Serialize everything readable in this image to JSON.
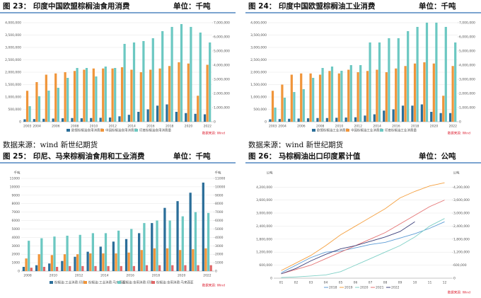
{
  "chart_data": [
    {
      "type": "bar",
      "title": "图 23： 印度中国欧盟棕榈油食用消费",
      "unit": "单位：千吨",
      "note": "数据来源：wind 新世纪期货",
      "source": "数据来源: Wind",
      "categories": [
        "2003",
        "2004",
        null,
        "2006",
        null,
        "2008",
        null,
        "2010",
        null,
        "2012",
        null,
        "2014",
        null,
        "2016",
        null,
        "2018",
        null,
        "2020",
        null,
        "2022"
      ],
      "ylim": [
        0,
        4000000
      ],
      "yticks": [
        0,
        {
          "value": 500000,
          "label": "500,000"
        },
        {
          "value": 1000000,
          "label": "1,000,000"
        },
        {
          "value": 1500000,
          "label": "1,500,000"
        },
        {
          "value": 2000000,
          "label": "2,000,000"
        },
        {
          "value": 2500000,
          "label": "2,500,000"
        },
        {
          "value": 3000000,
          "label": "3,000,000"
        },
        {
          "value": 3500000,
          "label": "3,500,000"
        },
        {
          "value": 4000000,
          "label": "4,000,000"
        }
      ],
      "y2lim": [
        0,
        7000000
      ],
      "y2ticks": [
        0,
        {
          "value": 1000000,
          "label": "1,000,000"
        },
        {
          "value": 2000000,
          "label": "2,000,000"
        },
        {
          "value": 3000000,
          "label": "3,000,000"
        },
        {
          "value": 4000000,
          "label": "4,000,000"
        },
        {
          "value": 5000000,
          "label": "5,000,000"
        },
        {
          "value": 6000000,
          "label": "6,000,000"
        },
        {
          "value": 7000000,
          "label": "7,000,000"
        }
      ],
      "grid": true,
      "series": [
        {
          "name": "欧盟棕榈油食用消费量",
          "color": "#2b6e99",
          "values": [
            100000,
            110000,
            120000,
            130000,
            140000,
            150000,
            140000,
            150000,
            160000,
            170000,
            220000,
            280000,
            400000,
            500000,
            650000,
            700000,
            400000,
            350000,
            320000,
            300000
          ]
        },
        {
          "name": "中国棕榈油食用消费量",
          "color": "#f0953a",
          "values": [
            1250000,
            1600000,
            1900000,
            1950000,
            2000000,
            2050000,
            2100000,
            2150000,
            2150000,
            2150000,
            2200000,
            2100000,
            2000000,
            2100000,
            2150000,
            2250000,
            2400000,
            2350000,
            1050000,
            2300000
          ]
        },
        {
          "name": "印度棕榈油食用消费量",
          "color": "#6cc8c2",
          "axis": "y2",
          "values": [
            1100000,
            1800000,
            2200000,
            2400000,
            3100000,
            3800000,
            3800000,
            3200000,
            3900000,
            3800000,
            5500000,
            5600000,
            5700000,
            5900000,
            6400000,
            6700000,
            6900000,
            6700000,
            6300000,
            5600000
          ]
        }
      ]
    },
    {
      "type": "bar",
      "title": "图 24： 印度中国欧盟棕榈油工业消费",
      "unit": "单位：千吨",
      "note": "数据来源：wind 新世纪期货",
      "source": "数据来源: Wind",
      "categories": [
        "2003",
        "2004",
        null,
        "2006",
        null,
        "2008",
        null,
        "2010",
        null,
        "2012",
        null,
        "2014",
        null,
        "2016",
        null,
        "2018",
        null,
        "2020",
        null,
        "2022"
      ],
      "ylim": [
        0,
        4000000
      ],
      "yticks": [
        0,
        {
          "value": 500000,
          "label": "500,000"
        },
        {
          "value": 1000000,
          "label": "1,000,000"
        },
        {
          "value": 1500000,
          "label": "1,500,000"
        },
        {
          "value": 2000000,
          "label": "2,000,000"
        },
        {
          "value": 2500000,
          "label": "2,500,000"
        },
        {
          "value": 3000000,
          "label": "3,000,000"
        },
        {
          "value": 3500000,
          "label": "3,500,000"
        },
        {
          "value": 4000000,
          "label": "4,000,000"
        }
      ],
      "y2lim": [
        0,
        7000000
      ],
      "y2ticks": [
        0,
        {
          "value": 1000000,
          "label": "1,000,000"
        },
        {
          "value": 2000000,
          "label": "2,000,000"
        },
        {
          "value": 3000000,
          "label": "3,000,000"
        },
        {
          "value": 4000000,
          "label": "4,000,000"
        },
        {
          "value": 5000000,
          "label": "5,000,000"
        },
        {
          "value": 6000000,
          "label": "6,000,000"
        },
        {
          "value": 7000000,
          "label": "7,000,000"
        }
      ],
      "grid": true,
      "series": [
        {
          "name": "欧盟棕榈油工业消费量",
          "color": "#2b6e99",
          "values": [
            100000,
            110000,
            120000,
            130000,
            140000,
            150000,
            150000,
            160000,
            170000,
            180000,
            250000,
            300000,
            450000,
            500000,
            650000,
            650000,
            700000,
            400000,
            350000,
            350000
          ]
        },
        {
          "name": "中国棕榈油工业消费量",
          "color": "#f0953a",
          "values": [
            1250000,
            1500000,
            1900000,
            1950000,
            1950000,
            1900000,
            2050000,
            1950000,
            2100000,
            2000000,
            2050000,
            2100000,
            2000000,
            2150000,
            2250000,
            2350000,
            2400000,
            2350000,
            1050000,
            2250000
          ]
        },
        {
          "name": "印度棕榈油工业消费量",
          "color": "#6cc8c2",
          "axis": "y2",
          "values": [
            1000000,
            1700000,
            2100000,
            2300000,
            3100000,
            3800000,
            3900000,
            3600000,
            4000000,
            4000000,
            5600000,
            5600000,
            5900000,
            5900000,
            6400000,
            6700000,
            7000000,
            7000000,
            6700000,
            5600000
          ]
        }
      ]
    },
    {
      "type": "bar",
      "title": "图 25： 印尼、马来棕榈油食用和工业消费",
      "unit": "单位：千吨",
      "source": "数据来源: Wind",
      "y_label": "千吨",
      "y2_label": "千吨",
      "categories": [
        "2008",
        null,
        "2010",
        null,
        "2012",
        null,
        "2014",
        null,
        "2016",
        null,
        "2018",
        null,
        "2020",
        null,
        "2022"
      ],
      "ylim": [
        0,
        11000
      ],
      "yticks": [
        0,
        1000,
        2000,
        3000,
        4000,
        5000,
        6000,
        7000,
        8000,
        9000,
        10000,
        11000
      ],
      "y2lim": [
        0,
        11000
      ],
      "y2ticks": [
        0,
        1000,
        2000,
        3000,
        4000,
        5000,
        6000,
        7000,
        8000,
        9000,
        10000,
        11000
      ],
      "grid": true,
      "series": [
        {
          "name": "棕榈油:工业消费:印尼",
          "color": "#2b6e99",
          "values": [
            500,
            700,
            900,
            1200,
            1700,
            2300,
            2900,
            3500,
            3800,
            4500,
            5700,
            7500,
            8300,
            9300,
            10500
          ]
        },
        {
          "name": "棕榈油:工业消费:马来西亚",
          "color": "#f0953a",
          "values": [
            1500,
            2000,
            1900,
            2000,
            2000,
            2100,
            2100,
            2100,
            2200,
            2500,
            2700,
            2700,
            2500,
            2600,
            2700
          ]
        },
        {
          "name": "棕榈油:食用消费:印尼",
          "color": "#6cc8c2",
          "values": [
            3600,
            3900,
            4100,
            4200,
            4300,
            4500,
            4500,
            4800,
            5000,
            5700,
            6000,
            6000,
            6500,
            7000,
            6900
          ]
        },
        {
          "name": "棕榈油:食用消费:马来西亚",
          "color": "#e06666",
          "values": [
            400,
            500,
            500,
            600,
            600,
            600,
            600,
            600,
            600,
            700,
            700,
            700,
            700,
            700,
            700
          ]
        }
      ]
    },
    {
      "type": "line",
      "title": "图 26： 马棕榈油出口印度累计值",
      "unit": "单位：公吨",
      "source": "数据来源: Wind",
      "y_label": "公吨",
      "y2_label": "公吨",
      "categories": [
        "01",
        "02",
        "03",
        "04",
        "05",
        "06",
        "07",
        "08",
        "09",
        "10",
        "11",
        "12"
      ],
      "ylim": [
        0,
        4600000
      ],
      "yticks": [
        0,
        {
          "value": 600000,
          "label": "600,000"
        },
        {
          "value": 1200000,
          "label": "1,200,000"
        },
        {
          "value": 1800000,
          "label": "1,800,000"
        },
        {
          "value": 2400000,
          "label": "2,400,000"
        },
        {
          "value": 3000000,
          "label": "3,000,000"
        },
        {
          "value": 3600000,
          "label": "3,600,000"
        },
        {
          "value": 4200000,
          "label": "4,200,000"
        }
      ],
      "y2lim": [
        0,
        4600000
      ],
      "y2ticks": [
        0,
        {
          "value": 600000,
          "label": "600,000"
        },
        {
          "value": 1200000,
          "label": "1,200,000"
        },
        {
          "value": 1800000,
          "label": "1,800,000"
        },
        {
          "value": 2400000,
          "label": "2,400,000"
        },
        {
          "value": 3000000,
          "label": "3,000,000"
        },
        {
          "value": 3600000,
          "label": "3,600,000"
        },
        {
          "value": 4200000,
          "label": "4,200,000"
        }
      ],
      "grid": true,
      "series": [
        {
          "name": "2018",
          "color": "#5b9bd5",
          "values": [
            250000,
            600000,
            950000,
            1200000,
            1250000,
            1400000,
            1550000,
            1650000,
            1850000,
            2050000,
            2300000,
            2600000
          ]
        },
        {
          "name": "2019",
          "color": "#f4a040",
          "values": [
            350000,
            700000,
            1050000,
            1500000,
            2000000,
            2400000,
            2800000,
            3200000,
            3700000,
            4000000,
            4250000,
            4400000
          ]
        },
        {
          "name": "2020",
          "color": "#7fd0c6",
          "values": [
            30000,
            60000,
            100000,
            150000,
            300000,
            600000,
            900000,
            1200000,
            1500000,
            1900000,
            2400000,
            2750000
          ]
        },
        {
          "name": "2021",
          "color": "#e57373",
          "values": [
            200000,
            400000,
            600000,
            900000,
            1200000,
            1500000,
            1800000,
            2100000,
            2500000,
            2900000,
            3300000,
            3600000
          ]
        },
        {
          "name": "2022",
          "color": "#3b3f7a",
          "values": [
            200000,
            450000,
            800000,
            1100000,
            1350000,
            1500000,
            1700000,
            1900000,
            2150000,
            2600000,
            null,
            null
          ]
        }
      ]
    }
  ]
}
